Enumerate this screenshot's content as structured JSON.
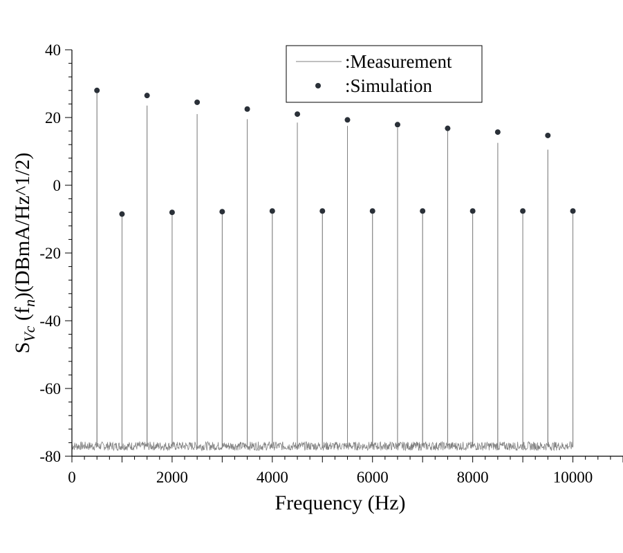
{
  "chart_data": {
    "type": "line",
    "xlabel": "Frequency (Hz)",
    "ylabel": {
      "main": "S",
      "sub1": "Vc",
      "mid": " (f",
      "sub2": "n",
      "tail": ")(DBmA/Hz^1/2)"
    },
    "xlim": [
      0,
      11000
    ],
    "ylim": [
      -80,
      40
    ],
    "xticks": [
      0,
      2000,
      4000,
      6000,
      8000,
      10000
    ],
    "yticks": [
      -80,
      -60,
      -40,
      -20,
      0,
      20,
      40
    ],
    "grid": false,
    "legend_position": "top-center",
    "noise_floor": -77,
    "series": [
      {
        "name": ":Measurement",
        "style": "thin-line",
        "color": "#808080",
        "peaks": [
          {
            "x": 500,
            "y": 28
          },
          {
            "x": 1000,
            "y": -8.5
          },
          {
            "x": 1500,
            "y": 23.5
          },
          {
            "x": 2000,
            "y": -8
          },
          {
            "x": 2500,
            "y": 21
          },
          {
            "x": 3000,
            "y": -7.8
          },
          {
            "x": 3500,
            "y": 19.5
          },
          {
            "x": 4000,
            "y": -7.6
          },
          {
            "x": 4500,
            "y": 18.5
          },
          {
            "x": 5000,
            "y": -7.6
          },
          {
            "x": 5500,
            "y": 17.5
          },
          {
            "x": 6000,
            "y": -7.6
          },
          {
            "x": 6500,
            "y": 17
          },
          {
            "x": 7000,
            "y": -7.6
          },
          {
            "x": 7500,
            "y": 16.5
          },
          {
            "x": 8000,
            "y": -7.6
          },
          {
            "x": 8500,
            "y": 12.5
          },
          {
            "x": 9000,
            "y": -7.6
          },
          {
            "x": 9500,
            "y": 10.5
          },
          {
            "x": 10000,
            "y": -7.6
          }
        ]
      },
      {
        "name": ":Simulation",
        "style": "dots",
        "color": "#2a3038",
        "points": [
          {
            "x": 500,
            "y": 28
          },
          {
            "x": 1000,
            "y": -8.5
          },
          {
            "x": 1500,
            "y": 26.5
          },
          {
            "x": 2000,
            "y": -8
          },
          {
            "x": 2500,
            "y": 24.5
          },
          {
            "x": 3000,
            "y": -7.8
          },
          {
            "x": 3500,
            "y": 22.5
          },
          {
            "x": 4000,
            "y": -7.6
          },
          {
            "x": 4500,
            "y": 21
          },
          {
            "x": 5000,
            "y": -7.6
          },
          {
            "x": 5500,
            "y": 19.3
          },
          {
            "x": 6000,
            "y": -7.6
          },
          {
            "x": 6500,
            "y": 17.9
          },
          {
            "x": 7000,
            "y": -7.6
          },
          {
            "x": 7500,
            "y": 16.8
          },
          {
            "x": 8000,
            "y": -7.6
          },
          {
            "x": 8500,
            "y": 15.7
          },
          {
            "x": 9000,
            "y": -7.6
          },
          {
            "x": 9500,
            "y": 14.7
          },
          {
            "x": 10000,
            "y": -7.6
          }
        ]
      }
    ]
  }
}
